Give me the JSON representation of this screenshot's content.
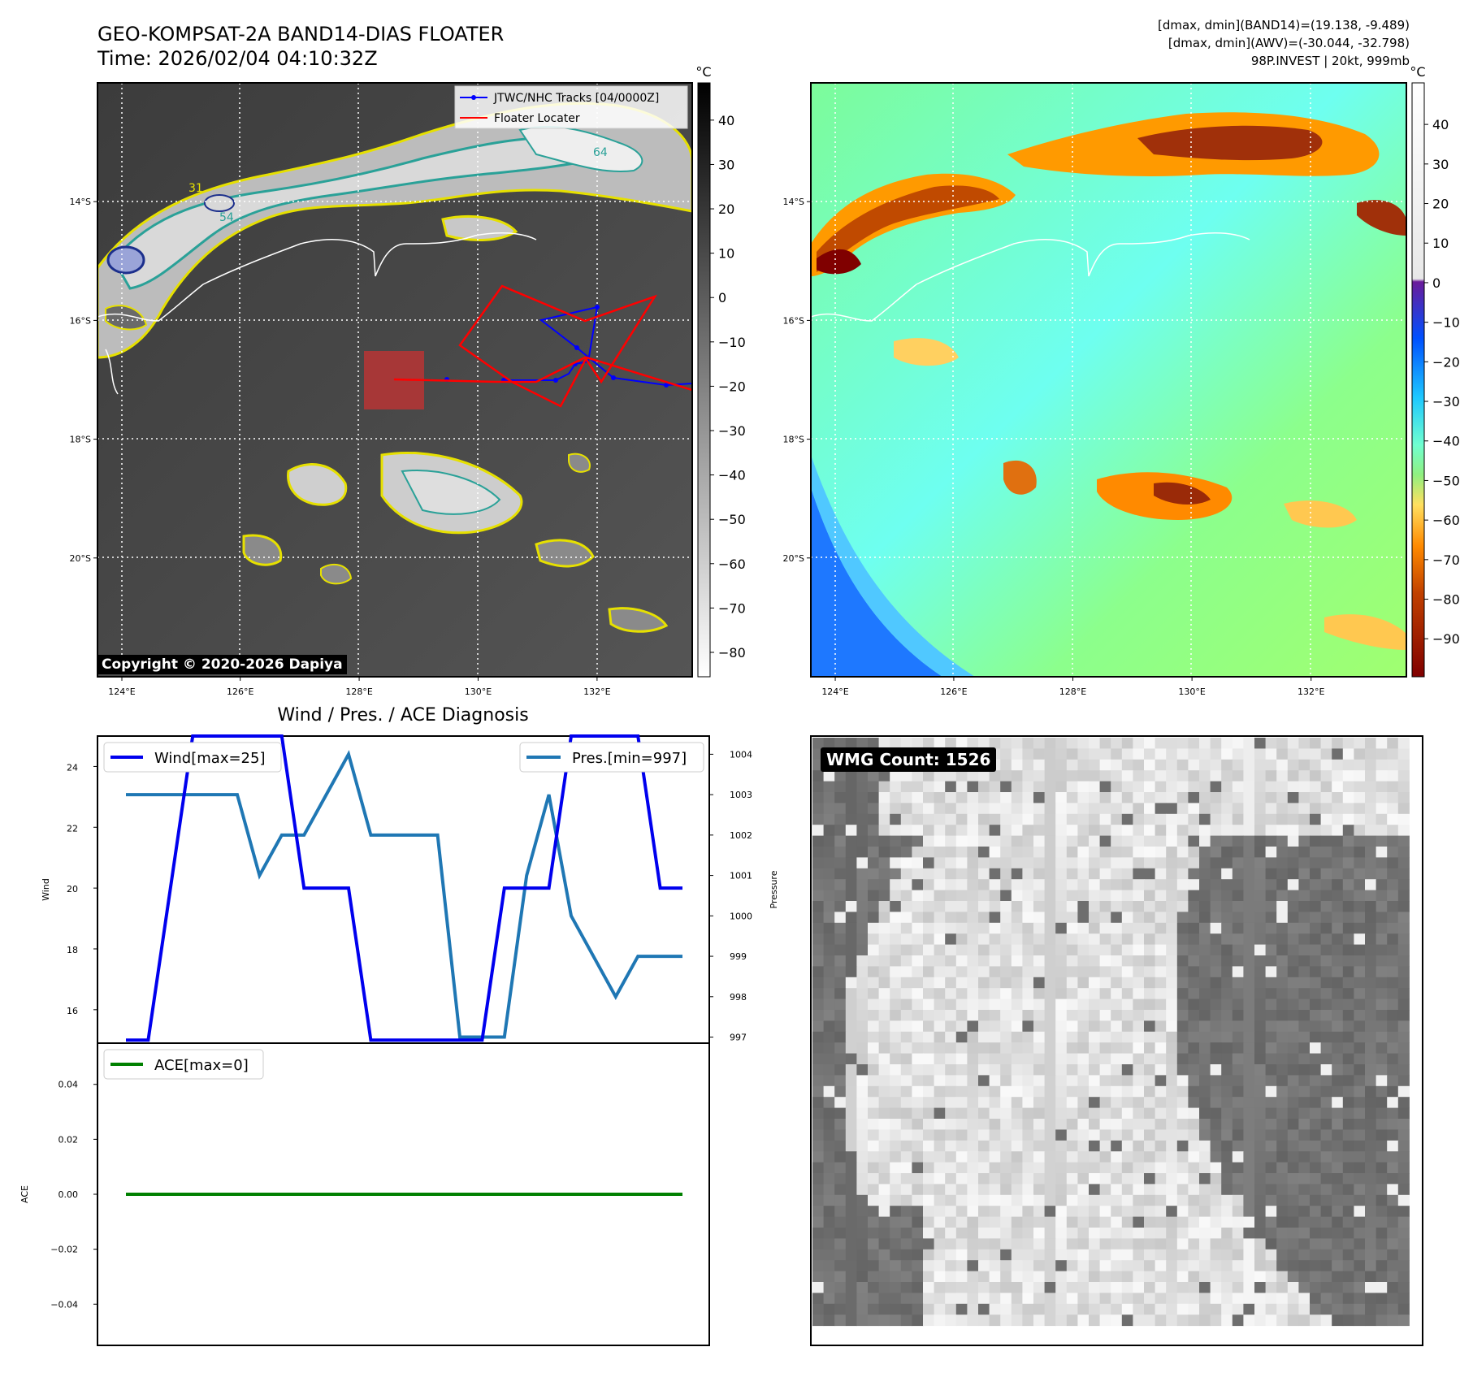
{
  "header": {
    "title_line1": "GEO-KOMPSAT-2A BAND14-DIAS FLOATER",
    "title_line2": "Time: 2026/02/04 04:10:32Z",
    "stat_line1": "[dmax, dmin](BAND14)=(19.138, -9.489)",
    "stat_line2": "[dmax, dmin](AWV)=(-30.044, -32.798)",
    "stat_line3": "98P.INVEST | 20kt, 999mb"
  },
  "copyright": "Copyright © 2020-2026 Dapiya",
  "wmg_label": "WMG Count: 1526",
  "diag_title": "Wind / Pres. / ACE Diagnosis",
  "colors": {
    "wind": "#0000ee",
    "pressure": "#1f77b4",
    "ace": "#008000",
    "track_jtwc": "#0000ff",
    "floater": "#ff0000",
    "coast": "#ffffff"
  },
  "chart_data": [
    {
      "type": "heatmap",
      "panel": "band14-ir",
      "x_ticks": [
        "124°E",
        "126°E",
        "128°E",
        "130°E",
        "132°E"
      ],
      "y_ticks": [
        "14°S",
        "16°S",
        "18°S",
        "20°S"
      ],
      "colorbar": {
        "unit": "°C",
        "ticks": [
          "40",
          "30",
          "20",
          "10",
          "0",
          "−10",
          "−20",
          "−30",
          "−40",
          "−50",
          "−60",
          "−70",
          "−80"
        ]
      },
      "legend": [
        "JTWC/NHC Tracks [04/0000Z]",
        "Floater Locater"
      ],
      "contour_labels": [
        "31",
        "54",
        "64"
      ],
      "grid": true,
      "legend_placement": "top-right"
    },
    {
      "type": "heatmap",
      "panel": "awv",
      "x_ticks": [
        "124°E",
        "126°E",
        "128°E",
        "130°E",
        "132°E"
      ],
      "y_ticks": [
        "14°S",
        "16°S",
        "18°S",
        "20°S"
      ],
      "colorbar": {
        "unit": "°C",
        "ticks": [
          "40",
          "30",
          "20",
          "10",
          "0",
          "−10",
          "−20",
          "−30",
          "−40",
          "−50",
          "−60",
          "−70",
          "−80",
          "−90"
        ]
      },
      "grid": true
    },
    {
      "type": "line",
      "panel": "wind-pressure",
      "x": [
        0,
        1,
        2,
        3,
        4,
        5,
        6,
        7,
        8,
        9,
        10,
        11,
        12,
        13,
        14,
        15,
        16,
        17,
        18,
        19,
        20,
        21,
        22,
        23,
        24,
        25
      ],
      "series": [
        {
          "name": "Wind[max=25]",
          "axis": "left",
          "values": [
            15,
            15,
            20,
            25,
            25,
            25,
            25,
            25,
            20,
            20,
            20,
            15,
            15,
            15,
            15,
            15,
            15,
            20,
            20,
            20,
            25,
            25,
            25,
            25,
            20,
            20
          ]
        },
        {
          "name": "Pres.[min=997]",
          "axis": "right",
          "values": [
            1003,
            1003,
            1003,
            1003,
            1003,
            1003,
            1001,
            1002,
            1002,
            1003,
            1004,
            1002,
            1002,
            1002,
            1002,
            997,
            997,
            997,
            1001,
            1003,
            1000,
            999,
            998,
            999,
            999,
            999
          ]
        }
      ],
      "ylabel": "Wind",
      "y2label": "Pressure",
      "y_ticks": [
        "16",
        "18",
        "20",
        "22",
        "24"
      ],
      "y2_ticks": [
        "997",
        "998",
        "999",
        "1000",
        "1001",
        "1002",
        "1003",
        "1004"
      ],
      "ylim": [
        14.9,
        25.0
      ],
      "y2lim": [
        996.85,
        1004.45
      ],
      "legend_placement": "top-left / top-right"
    },
    {
      "type": "line",
      "panel": "ace",
      "x": [
        0,
        25
      ],
      "series": [
        {
          "name": "ACE[max=0]",
          "values": [
            0,
            0
          ]
        }
      ],
      "ylabel": "ACE",
      "y_ticks": [
        "0.04",
        "0.02",
        "0.00",
        "−0.02",
        "−0.04"
      ],
      "ylim": [
        -0.055,
        0.055
      ],
      "legend_placement": "top-left"
    },
    {
      "type": "heatmap",
      "panel": "wmg-grid",
      "grid": false
    }
  ]
}
